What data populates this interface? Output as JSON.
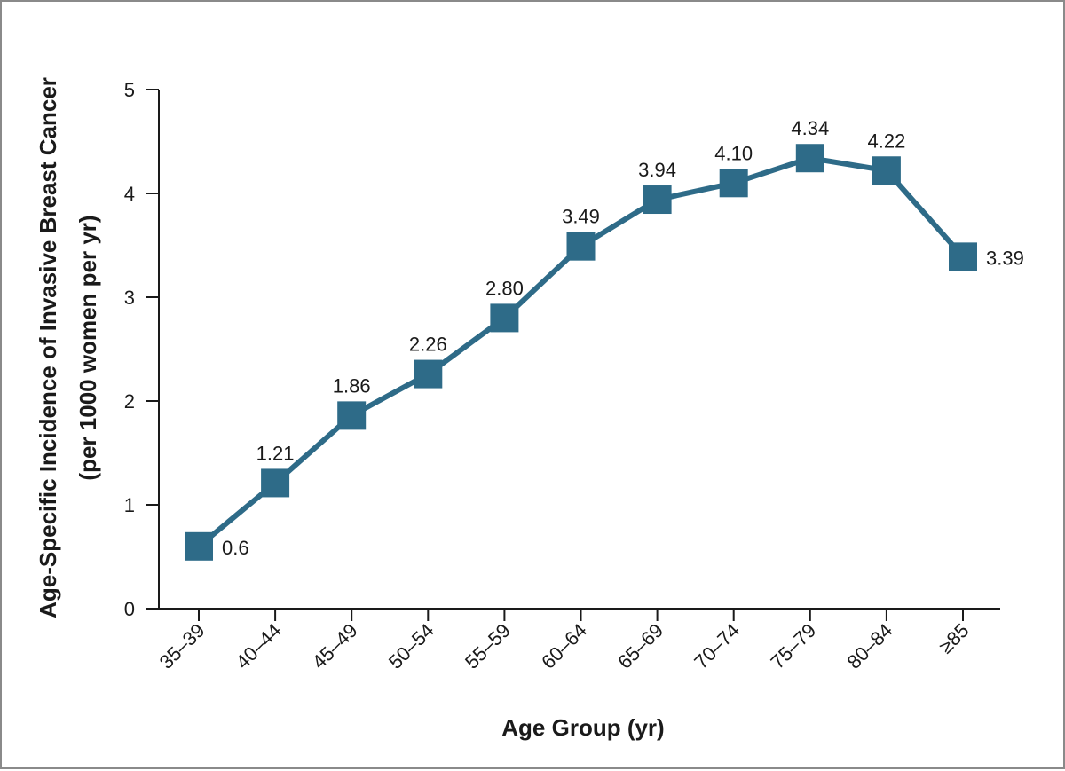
{
  "chart_data": {
    "type": "line",
    "categories": [
      "35–39",
      "40–44",
      "45–49",
      "50–54",
      "55–59",
      "60–64",
      "65–69",
      "70–74",
      "75–79",
      "80–84",
      "≥85"
    ],
    "series": [
      {
        "values": [
          0.6,
          1.21,
          1.86,
          2.26,
          2.8,
          3.49,
          3.94,
          4.1,
          4.34,
          4.22,
          3.39
        ],
        "labels": [
          "0.6",
          "1.21",
          "1.86",
          "2.26",
          "2.80",
          "3.49",
          "3.94",
          "4.10",
          "4.34",
          "4.22",
          "3.39"
        ],
        "label_position": [
          "right",
          "above",
          "above",
          "above",
          "above",
          "above",
          "above",
          "above",
          "above",
          "above",
          "right"
        ],
        "color": "#2e6b88",
        "marker": "square"
      }
    ],
    "title": "",
    "xlabel": "Age Group (yr)",
    "ylabel_lines": [
      "Age-Specific Incidence of Invasive Breast Cancer",
      "(per 1000 women per yr)"
    ],
    "ylim": [
      0,
      5
    ],
    "yticks": [
      0,
      1,
      2,
      3,
      4,
      5
    ],
    "grid": false,
    "legend": "none"
  }
}
